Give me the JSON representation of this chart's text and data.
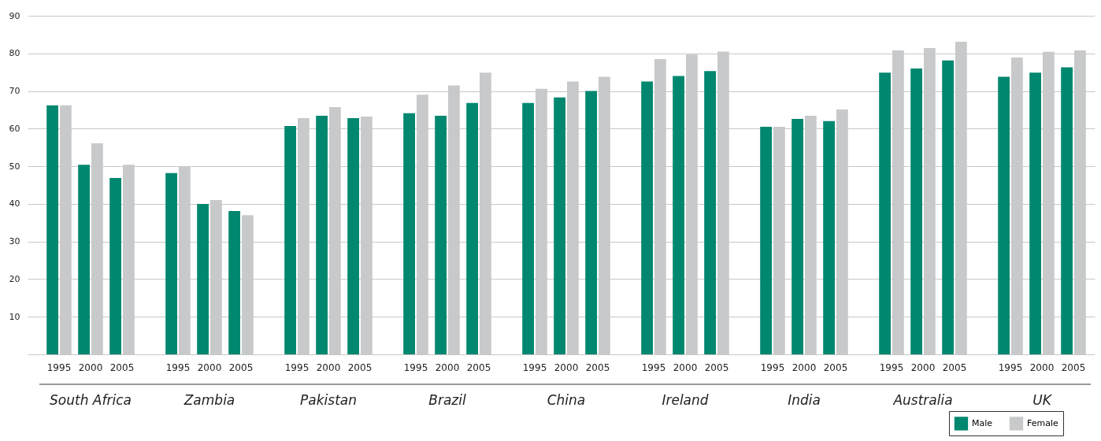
{
  "chart_data": {
    "type": "bar",
    "categories": [
      "1995",
      "2000",
      "2005",
      "1995",
      "2000",
      "2005",
      "1995",
      "2000",
      "2005",
      "1995",
      "2000",
      "2005",
      "1995",
      "2000",
      "2005",
      "1995",
      "2000",
      "2005",
      "1995",
      "2000",
      "2005",
      "1995",
      "2000",
      "2005",
      "1995",
      "2000",
      "2005"
    ],
    "series": [
      {
        "name": "Male",
        "color": "#00876f",
        "values": [
          66.2,
          50.4,
          46.9,
          48.2,
          40,
          38.1,
          60.7,
          63.4,
          62.8,
          64.1,
          63.4,
          66.8,
          66.8,
          68.3,
          70,
          72.5,
          74,
          75.3,
          60.5,
          62.6,
          62,
          74.9,
          76,
          78.1,
          73.8,
          74.9,
          76.3
        ]
      },
      {
        "name": "Female",
        "color": "#c8c9ca",
        "values": [
          66.2,
          56.1,
          50.4,
          50,
          41,
          37,
          62.8,
          65.7,
          63.2,
          69,
          71.5,
          74.9,
          70.6,
          72.5,
          73.8,
          78.5,
          79.7,
          80.5,
          60.5,
          63.4,
          65.1,
          80.8,
          81.4,
          83.1,
          78.9,
          80.4,
          80.8
        ]
      }
    ],
    "annotations": [
      "South Africa",
      "Zambia",
      "Pakistan",
      "Brazil",
      "China",
      "Ireland",
      "India",
      "Australia",
      "UK"
    ],
    "ylim": [
      0,
      90
    ],
    "yticks": [
      {
        "value": 0,
        "label": null
      },
      10,
      20,
      30,
      40,
      50,
      60,
      70,
      80,
      90
    ],
    "grid": "y",
    "legend": "bottom right"
  }
}
